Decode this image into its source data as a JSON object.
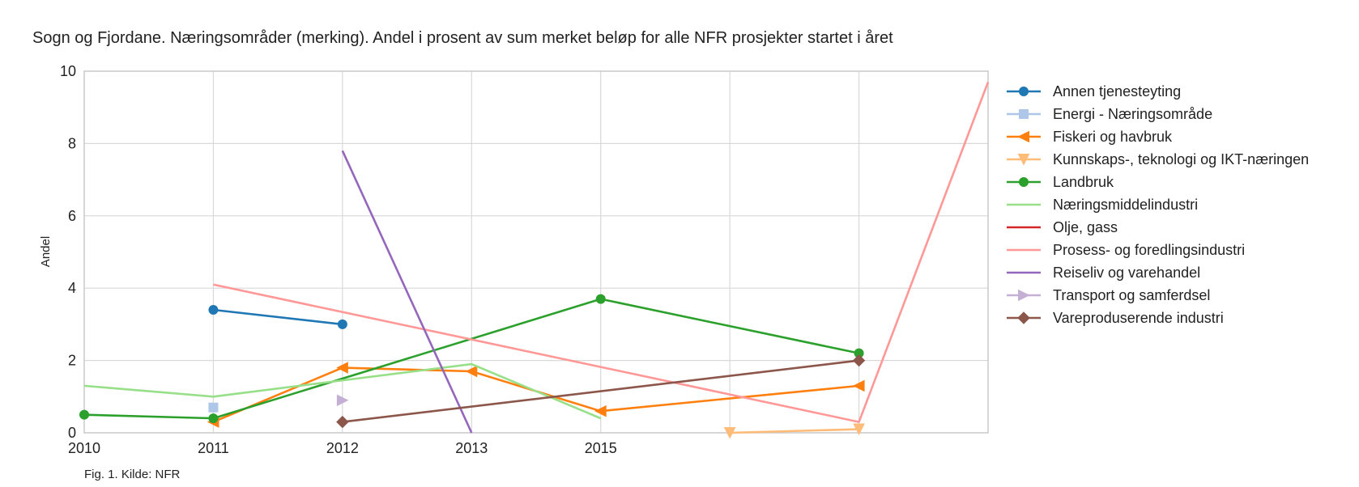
{
  "title": "Sogn og Fjordane. Næringsområder (merking). Andel i prosent av sum merket beløp for alle NFR prosjekter startet i året",
  "caption": "Fig. 1. Kilde: NFR",
  "chart_data": {
    "type": "line",
    "title": "Sogn og Fjordane. Næringsområder (merking). Andel i prosent av sum merket beløp for alle NFR prosjekter startet i året",
    "xlabel": "",
    "ylabel": "Andel",
    "x_categories": [
      "2010",
      "2011",
      "2012",
      "2013",
      "2015",
      "",
      "",
      ""
    ],
    "x_tick_labels": [
      "2010",
      "2011",
      "2012",
      "2013",
      "2015"
    ],
    "ylim": [
      0,
      10
    ],
    "y_ticks": [
      0,
      2,
      4,
      6,
      8,
      10
    ],
    "grid": true,
    "legend_position": "right, outside plot",
    "series": [
      {
        "name": "Annen tjenesteyting",
        "color": "#1f77b4",
        "marker": "circle",
        "points": [
          [
            1,
            3.4
          ],
          [
            2,
            3.0
          ]
        ]
      },
      {
        "name": "Energi - Næringsområde",
        "color": "#aec7e8",
        "marker": "square",
        "points": [
          [
            1,
            0.7
          ]
        ]
      },
      {
        "name": "Fiskeri og havbruk",
        "color": "#ff7f0e",
        "marker": "triangle-left",
        "points": [
          [
            1,
            0.3
          ],
          [
            2,
            1.8
          ],
          [
            3,
            1.7
          ],
          [
            4,
            0.6
          ],
          [
            6,
            1.3
          ]
        ]
      },
      {
        "name": "Kunnskaps-, teknologi og IKT-næringen",
        "color": "#ffbb78",
        "marker": "triangle-down",
        "points": [
          [
            5,
            0.0
          ],
          [
            6,
            0.1
          ]
        ]
      },
      {
        "name": "Landbruk",
        "color": "#2ca02c",
        "marker": "circle",
        "points": [
          [
            0,
            0.5
          ],
          [
            1,
            0.4
          ],
          [
            4,
            3.7
          ],
          [
            6,
            2.2
          ]
        ]
      },
      {
        "name": "Næringsmiddelindustri",
        "color": "#98df8a",
        "marker": "none",
        "points": [
          [
            0,
            1.3
          ],
          [
            1,
            1.0
          ],
          [
            3,
            1.9
          ],
          [
            4,
            0.4
          ]
        ]
      },
      {
        "name": "Olje, gass",
        "color": "#d62728",
        "marker": "none",
        "points": []
      },
      {
        "name": "Prosess- og foredlingsindustri",
        "color": "#ff9896",
        "marker": "none",
        "points": [
          [
            1,
            4.1
          ],
          [
            6,
            0.3
          ],
          [
            7,
            9.7
          ]
        ]
      },
      {
        "name": "Reiseliv og varehandel",
        "color": "#9467bd",
        "marker": "none",
        "points": [
          [
            2,
            7.8
          ],
          [
            3,
            0.0
          ]
        ]
      },
      {
        "name": "Transport og samferdsel",
        "color": "#c5b0d5",
        "marker": "triangle-right",
        "points": [
          [
            2,
            0.9
          ]
        ]
      },
      {
        "name": "Vareproduserende industri",
        "color": "#8c564b",
        "marker": "diamond",
        "points": [
          [
            2,
            0.3
          ],
          [
            6,
            2.0
          ]
        ]
      }
    ]
  }
}
